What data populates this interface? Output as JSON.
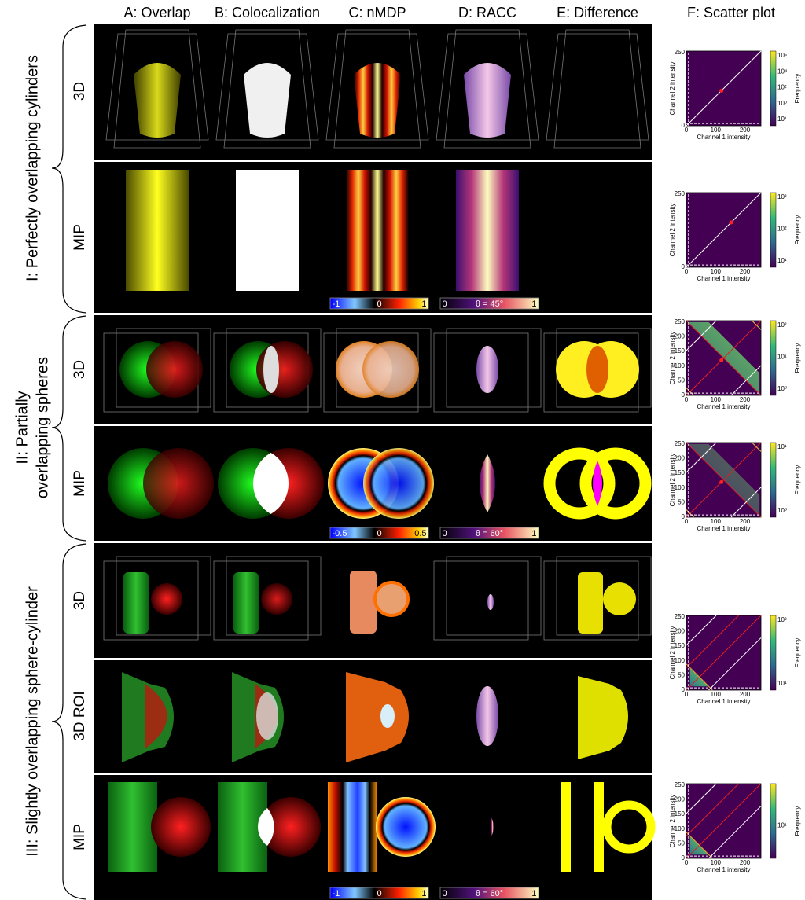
{
  "columns": [
    "A: Overlap",
    "B: Colocalization",
    "C: nMDP",
    "D: RACC",
    "E: Difference",
    "F: Scatter plot"
  ],
  "sections": [
    {
      "label_lines": [
        "I: Perfectly overlapping cylinders"
      ],
      "rows": [
        "3D",
        "MIP"
      ],
      "colorbars": {
        "nmdp": [
          "-1",
          "0",
          "1"
        ],
        "racc": [
          "0",
          "θ = 45°",
          "1"
        ]
      }
    },
    {
      "label_lines": [
        "II: Partially",
        "overlapping spheres"
      ],
      "rows": [
        "3D",
        "MIP"
      ],
      "colorbars": {
        "nmdp": [
          "-0.5",
          "0",
          "0.5"
        ],
        "racc": [
          "0",
          "θ = 60°",
          "1"
        ]
      }
    },
    {
      "label_lines": [
        "III: Slightly overlapping sphere-cylinder"
      ],
      "rows": [
        "3D",
        "3D ROI",
        "MIP"
      ],
      "colorbars": {
        "nmdp": [
          "-1",
          "0",
          "1"
        ],
        "racc": [
          "0",
          "θ = 60°",
          "1"
        ]
      }
    }
  ],
  "scatter_plots": [
    {
      "x_label": "Channel 1 intensity",
      "y_label": "Channel 2 intensity",
      "colorbar_label": "Frequency",
      "x_ticks": [
        "0",
        "100",
        "200"
      ],
      "y_ticks": [
        "0",
        "50",
        "100",
        "150",
        "200",
        "250"
      ],
      "colorbar_ticks": [
        "10⁵",
        "10⁴",
        "10²",
        "10⁰",
        "10¹"
      ]
    },
    {
      "x_label": "Channel 1 intensity",
      "y_label": "Channel 2 intensity",
      "colorbar_label": "Frequency",
      "x_ticks": [
        "0",
        "100",
        "200"
      ],
      "y_ticks": [
        "0",
        "50",
        "100",
        "150",
        "200",
        "250"
      ],
      "colorbar_ticks": [
        "10³",
        "10²",
        "10¹"
      ]
    },
    {
      "x_label": "Channel 1 intensity",
      "y_label": "Channel 2 intensity",
      "colorbar_label": "Frequency",
      "x_ticks": [
        "0",
        "100",
        "200"
      ],
      "y_ticks": [
        "0",
        "50",
        "100",
        "150",
        "200",
        "250"
      ],
      "colorbar_ticks": [
        "10²",
        "10¹",
        "10⁰"
      ]
    },
    {
      "x_label": "Channel 1 intensity",
      "y_label": "Channel 2 intensity",
      "colorbar_label": "Frequency",
      "x_ticks": [
        "0",
        "100",
        "200"
      ],
      "y_ticks": [
        "0",
        "50",
        "100",
        "150",
        "200",
        "250"
      ],
      "colorbar_ticks": [
        "10¹",
        "10⁰"
      ]
    },
    {
      "x_label": "Channel 1 intensity",
      "y_label": "Channel 2 intensity",
      "colorbar_label": "Frequency",
      "x_ticks": [
        "0",
        "100",
        "200"
      ],
      "y_ticks": [
        "0",
        "50",
        "100",
        "150",
        "200",
        "250"
      ],
      "colorbar_ticks": [
        "10²",
        "10¹"
      ]
    },
    {
      "x_label": "Channel 1 intensity",
      "y_label": "Channel 2 intensity",
      "colorbar_label": "Frequency",
      "x_ticks": [
        "0",
        "100",
        "200"
      ],
      "y_ticks": [
        "0",
        "50",
        "100",
        "150",
        "200",
        "250"
      ],
      "colorbar_ticks": [
        "10¹"
      ]
    }
  ]
}
